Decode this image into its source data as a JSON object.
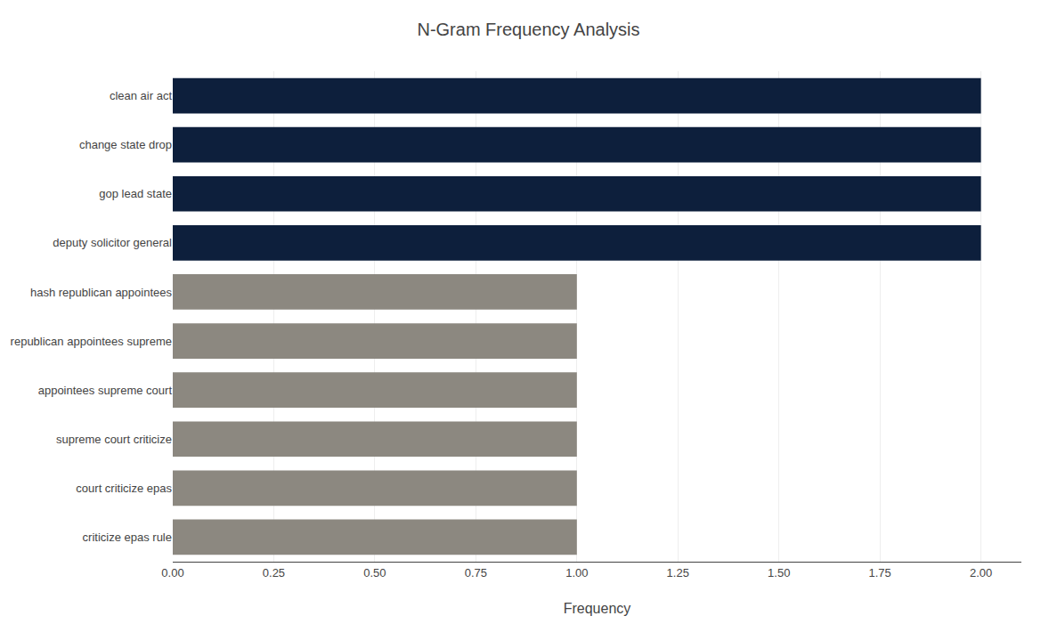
{
  "chart_data": {
    "type": "bar",
    "orientation": "horizontal",
    "title": "N-Gram Frequency Analysis",
    "xlabel": "Frequency",
    "categories": [
      "criticize epas rule",
      "court criticize epas",
      "supreme court criticize",
      "appointees supreme court",
      "republican appointees supreme",
      "hash republican appointees",
      "deputy solicitor general",
      "gop lead state",
      "change state drop",
      "clean air act"
    ],
    "values": [
      1,
      1,
      1,
      1,
      1,
      1,
      2,
      2,
      2,
      2
    ],
    "colors": [
      "#8c8880",
      "#8c8880",
      "#8c8880",
      "#8c8880",
      "#8c8880",
      "#8c8880",
      "#0d1f3c",
      "#0d1f3c",
      "#0d1f3c",
      "#0d1f3c"
    ],
    "xlim": [
      0,
      2.1
    ],
    "xticks": [
      {
        "value": 0,
        "label": "0.00"
      },
      {
        "value": 0.25,
        "label": "0.25"
      },
      {
        "value": 0.5,
        "label": "0.50"
      },
      {
        "value": 0.75,
        "label": "0.75"
      },
      {
        "value": 1,
        "label": "1.00"
      },
      {
        "value": 1.25,
        "label": "1.25"
      },
      {
        "value": 1.5,
        "label": "1.50"
      },
      {
        "value": 1.75,
        "label": "1.75"
      },
      {
        "value": 2,
        "label": "2.00"
      }
    ],
    "grid": true
  }
}
